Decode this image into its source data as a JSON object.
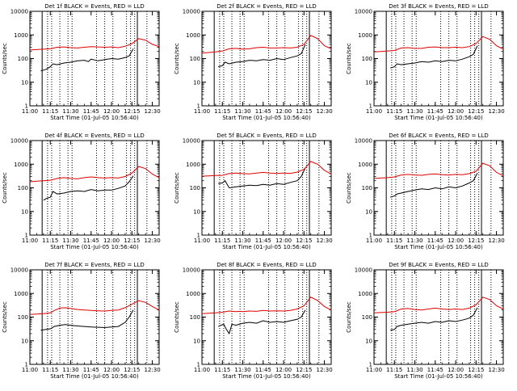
{
  "colors": {
    "events": "#000000",
    "lld": "#e00000",
    "axis": "#000000",
    "background": "#ffffff"
  },
  "chart_data": [
    {
      "type": "line",
      "title": "Det 1f BLACK = Events, RED = LLD",
      "xlabel": "Start Time (01-Jul-05 10:56:40)",
      "ylabel": "Counts/sec",
      "yscale": "log",
      "ylim": [
        1,
        10000
      ],
      "xlim": [
        "11:00",
        "12:35"
      ],
      "xticks": [
        "11:00",
        "11:15",
        "11:30",
        "11:45",
        "12:00",
        "12:15",
        "12:30"
      ],
      "yticks": [
        "1",
        "10",
        "100",
        "1000",
        "10000"
      ],
      "series": [
        {
          "name": "Events",
          "x": [
            "11:08",
            "11:12",
            "11:15",
            "11:17",
            "11:20",
            "11:25",
            "11:30",
            "11:35",
            "11:40",
            "11:43",
            "11:45",
            "11:50",
            "11:55",
            "12:00",
            "12:05",
            "12:10",
            "12:13",
            "12:16"
          ],
          "y": [
            30,
            35,
            45,
            60,
            55,
            65,
            70,
            80,
            85,
            75,
            95,
            80,
            90,
            100,
            95,
            110,
            130,
            260
          ]
        },
        {
          "name": "LLD",
          "x": [
            "11:00",
            "11:05",
            "11:10",
            "11:15",
            "11:20",
            "11:25",
            "11:30",
            "11:35",
            "11:40",
            "11:45",
            "11:50",
            "11:55",
            "12:00",
            "12:05",
            "12:10",
            "12:15",
            "12:20",
            "12:25",
            "12:30",
            "12:35"
          ],
          "y": [
            230,
            240,
            250,
            260,
            300,
            310,
            290,
            280,
            300,
            320,
            310,
            300,
            310,
            290,
            330,
            430,
            700,
            600,
            400,
            320
          ]
        }
      ]
    },
    {
      "type": "line",
      "title": "Det 2f BLACK = Events, RED = LLD",
      "xlabel": "Start Time (01-Jul-05 10:56:40)",
      "ylabel": "Counts/sec",
      "yscale": "log",
      "ylim": [
        1,
        10000
      ],
      "xlim": [
        "11:00",
        "12:35"
      ],
      "xticks": [
        "11:00",
        "11:15",
        "11:30",
        "11:45",
        "12:00",
        "12:15",
        "12:30"
      ],
      "yticks": [
        "1",
        "10",
        "100",
        "1000",
        "10000"
      ],
      "series": [
        {
          "name": "Events",
          "x": [
            "11:12",
            "11:15",
            "11:17",
            "11:20",
            "11:25",
            "11:30",
            "11:35",
            "11:40",
            "11:45",
            "11:50",
            "11:55",
            "12:00",
            "12:05",
            "12:10",
            "12:13",
            "12:16"
          ],
          "y": [
            45,
            50,
            70,
            60,
            70,
            75,
            85,
            80,
            90,
            85,
            100,
            90,
            110,
            130,
            160,
            400
          ]
        },
        {
          "name": "LLD",
          "x": [
            "11:00",
            "11:05",
            "11:10",
            "11:15",
            "11:20",
            "11:25",
            "11:30",
            "11:35",
            "11:40",
            "11:45",
            "11:50",
            "11:55",
            "12:00",
            "12:05",
            "12:10",
            "12:15",
            "12:20",
            "12:25",
            "12:30",
            "12:35"
          ],
          "y": [
            170,
            180,
            190,
            210,
            260,
            270,
            250,
            260,
            290,
            300,
            280,
            280,
            290,
            280,
            300,
            400,
            950,
            700,
            350,
            260
          ]
        }
      ]
    },
    {
      "type": "line",
      "title": "Det 3f BLACK = Events, RED = LLD",
      "xlabel": "Start Time (01-Jul-05 10:56:40)",
      "ylabel": "Counts/sec",
      "yscale": "log",
      "ylim": [
        1,
        10000
      ],
      "xlim": [
        "11:00",
        "12:35"
      ],
      "xticks": [
        "11:00",
        "11:15",
        "11:30",
        "11:45",
        "12:00",
        "12:15",
        "12:30"
      ],
      "yticks": [
        "1",
        "10",
        "100",
        "1000",
        "10000"
      ],
      "series": [
        {
          "name": "Events",
          "x": [
            "11:12",
            "11:15",
            "11:17",
            "11:20",
            "11:25",
            "11:30",
            "11:35",
            "11:40",
            "11:45",
            "11:50",
            "11:55",
            "12:00",
            "12:05",
            "12:10",
            "12:13",
            "12:16"
          ],
          "y": [
            40,
            45,
            60,
            55,
            60,
            65,
            75,
            70,
            80,
            75,
            85,
            80,
            95,
            120,
            150,
            350
          ]
        },
        {
          "name": "LLD",
          "x": [
            "11:00",
            "11:05",
            "11:10",
            "11:15",
            "11:20",
            "11:25",
            "11:30",
            "11:35",
            "11:40",
            "11:45",
            "11:50",
            "11:55",
            "12:00",
            "12:05",
            "12:10",
            "12:15",
            "12:20",
            "12:25",
            "12:30",
            "12:35"
          ],
          "y": [
            190,
            200,
            210,
            220,
            280,
            290,
            270,
            270,
            300,
            310,
            290,
            290,
            300,
            290,
            320,
            430,
            850,
            650,
            350,
            250
          ]
        }
      ]
    },
    {
      "type": "line",
      "title": "Det 4f BLACK = Events, RED = LLD",
      "xlabel": "Start Time (01-Jul-05 10:56:40)",
      "ylabel": "Counts/sec",
      "yscale": "log",
      "ylim": [
        1,
        10000
      ],
      "xlim": [
        "11:00",
        "12:35"
      ],
      "xticks": [
        "11:00",
        "11:15",
        "11:30",
        "11:45",
        "12:00",
        "12:15",
        "12:30"
      ],
      "yticks": [
        "1",
        "10",
        "100",
        "1000",
        "10000"
      ],
      "series": [
        {
          "name": "Events",
          "x": [
            "11:10",
            "11:12",
            "11:15",
            "11:17",
            "11:20",
            "11:25",
            "11:30",
            "11:35",
            "11:40",
            "11:45",
            "11:50",
            "11:55",
            "12:00",
            "12:05",
            "12:10",
            "12:13",
            "12:16"
          ],
          "y": [
            30,
            35,
            40,
            70,
            55,
            60,
            70,
            75,
            70,
            85,
            75,
            80,
            80,
            95,
            120,
            180,
            320
          ]
        },
        {
          "name": "LLD",
          "x": [
            "11:00",
            "11:05",
            "11:10",
            "11:15",
            "11:20",
            "11:25",
            "11:30",
            "11:35",
            "11:40",
            "11:45",
            "11:50",
            "11:55",
            "12:00",
            "12:05",
            "12:10",
            "12:15",
            "12:20",
            "12:25",
            "12:30",
            "12:35"
          ],
          "y": [
            180,
            190,
            200,
            210,
            250,
            270,
            250,
            240,
            270,
            290,
            270,
            260,
            270,
            260,
            300,
            420,
            800,
            650,
            380,
            270
          ]
        }
      ]
    },
    {
      "type": "line",
      "title": "Det 5f BLACK = Events, RED = LLD",
      "xlabel": "Start Time (01-Jul-05 10:56:40)",
      "ylabel": "Counts/sec",
      "yscale": "log",
      "ylim": [
        1,
        10000
      ],
      "xlim": [
        "11:00",
        "12:35"
      ],
      "xticks": [
        "11:00",
        "11:15",
        "11:30",
        "11:45",
        "12:00",
        "12:15",
        "12:30"
      ],
      "yticks": [
        "1",
        "10",
        "100",
        "1000",
        "10000"
      ],
      "series": [
        {
          "name": "Events",
          "x": [
            "11:12",
            "11:15",
            "11:17",
            "11:20",
            "11:25",
            "11:30",
            "11:35",
            "11:40",
            "11:45",
            "11:50",
            "11:55",
            "12:00",
            "12:05",
            "12:10",
            "12:13",
            "12:16"
          ],
          "y": [
            150,
            160,
            200,
            100,
            110,
            120,
            130,
            125,
            140,
            130,
            150,
            140,
            170,
            200,
            300,
            700
          ]
        },
        {
          "name": "LLD",
          "x": [
            "11:00",
            "11:05",
            "11:10",
            "11:15",
            "11:20",
            "11:25",
            "11:30",
            "11:35",
            "11:40",
            "11:45",
            "11:50",
            "11:55",
            "12:00",
            "12:05",
            "12:10",
            "12:15",
            "12:20",
            "12:25",
            "12:30",
            "12:35"
          ],
          "y": [
            310,
            320,
            330,
            340,
            400,
            420,
            400,
            390,
            420,
            450,
            420,
            410,
            420,
            410,
            460,
            600,
            1300,
            1000,
            550,
            380
          ]
        }
      ]
    },
    {
      "type": "line",
      "title": "Det 6f BLACK = Events, RED = LLD",
      "xlabel": "Start Time (01-Jul-05 10:56:40)",
      "ylabel": "Counts/sec",
      "yscale": "log",
      "ylim": [
        1,
        10000
      ],
      "xlim": [
        "11:00",
        "12:35"
      ],
      "xticks": [
        "11:00",
        "11:15",
        "11:30",
        "11:45",
        "12:00",
        "12:15",
        "12:30"
      ],
      "yticks": [
        "1",
        "10",
        "100",
        "1000",
        "10000"
      ],
      "series": [
        {
          "name": "Events",
          "x": [
            "11:12",
            "11:15",
            "11:17",
            "11:20",
            "11:25",
            "11:30",
            "11:35",
            "11:40",
            "11:45",
            "11:50",
            "11:55",
            "12:00",
            "12:05",
            "12:10",
            "12:13",
            "12:16"
          ],
          "y": [
            40,
            45,
            55,
            60,
            70,
            80,
            90,
            85,
            100,
            90,
            110,
            100,
            120,
            160,
            200,
            420
          ]
        },
        {
          "name": "LLD",
          "x": [
            "11:00",
            "11:05",
            "11:10",
            "11:15",
            "11:20",
            "11:25",
            "11:30",
            "11:35",
            "11:40",
            "11:45",
            "11:50",
            "11:55",
            "12:00",
            "12:05",
            "12:10",
            "12:15",
            "12:20",
            "12:25",
            "12:30",
            "12:35"
          ],
          "y": [
            250,
            260,
            270,
            290,
            350,
            370,
            350,
            340,
            370,
            390,
            360,
            350,
            370,
            360,
            400,
            500,
            1100,
            850,
            450,
            320
          ]
        }
      ]
    },
    {
      "type": "line",
      "title": "Det 7f BLACK = Events, RED = LLD",
      "xlabel": "Start Time (01-Jul-05 10:56:40)",
      "ylabel": "Counts/sec",
      "yscale": "log",
      "ylim": [
        1,
        10000
      ],
      "xlim": [
        "11:00",
        "12:35"
      ],
      "xticks": [
        "11:00",
        "11:15",
        "11:30",
        "11:45",
        "12:00",
        "12:15",
        "12:30"
      ],
      "yticks": [
        "1",
        "10",
        "100",
        "1000",
        "10000"
      ],
      "series": [
        {
          "name": "Events",
          "x": [
            "11:08",
            "11:12",
            "11:15",
            "11:18",
            "11:22",
            "11:26",
            "11:30",
            "11:35",
            "11:40",
            "11:45",
            "11:50",
            "11:55",
            "12:00",
            "12:05",
            "12:10",
            "12:13",
            "12:16"
          ],
          "y": [
            28,
            30,
            32,
            40,
            45,
            48,
            45,
            42,
            40,
            38,
            37,
            36,
            38,
            40,
            60,
            100,
            200
          ]
        },
        {
          "name": "LLD",
          "x": [
            "11:00",
            "11:05",
            "11:10",
            "11:15",
            "11:18",
            "11:22",
            "11:26",
            "11:30",
            "11:35",
            "11:40",
            "11:45",
            "11:50",
            "11:55",
            "12:00",
            "12:05",
            "12:10",
            "12:15",
            "12:20",
            "12:25",
            "12:30",
            "12:35"
          ],
          "y": [
            130,
            135,
            140,
            150,
            190,
            240,
            250,
            230,
            210,
            200,
            190,
            185,
            180,
            190,
            200,
            250,
            350,
            500,
            420,
            280,
            200
          ]
        }
      ]
    },
    {
      "type": "line",
      "title": "Det 8f BLACK = Events, RED = LLD",
      "xlabel": "Start Time (01-Jul-05 10:56:40)",
      "ylabel": "Counts/sec",
      "yscale": "log",
      "ylim": [
        1,
        10000
      ],
      "xlim": [
        "11:00",
        "12:35"
      ],
      "xticks": [
        "11:00",
        "11:15",
        "11:30",
        "11:45",
        "12:00",
        "12:15",
        "12:30"
      ],
      "yticks": [
        "1",
        "10",
        "100",
        "1000",
        "10000"
      ],
      "series": [
        {
          "name": "Events",
          "x": [
            "11:12",
            "11:14",
            "11:16",
            "11:18",
            "11:20",
            "11:22",
            "11:25",
            "11:30",
            "11:35",
            "11:40",
            "11:45",
            "11:50",
            "11:55",
            "12:00",
            "12:05",
            "12:10",
            "12:13",
            "12:16"
          ],
          "y": [
            40,
            45,
            50,
            30,
            20,
            50,
            45,
            55,
            60,
            55,
            70,
            60,
            65,
            60,
            70,
            80,
            100,
            200
          ]
        },
        {
          "name": "LLD",
          "x": [
            "11:00",
            "11:05",
            "11:10",
            "11:15",
            "11:20",
            "11:25",
            "11:28",
            "11:30",
            "11:35",
            "11:40",
            "11:45",
            "11:50",
            "11:55",
            "12:00",
            "12:05",
            "12:10",
            "12:15",
            "12:20",
            "12:25",
            "12:30",
            "12:35"
          ],
          "y": [
            140,
            145,
            150,
            160,
            180,
            170,
            175,
            170,
            180,
            175,
            190,
            180,
            185,
            180,
            190,
            220,
            300,
            700,
            500,
            280,
            200
          ]
        }
      ]
    },
    {
      "type": "line",
      "title": "Det 9f BLACK = Events, RED = LLD",
      "xlabel": "Start Time (01-Jul-05 10:56:40)",
      "ylabel": "Counts/sec",
      "yscale": "log",
      "ylim": [
        1,
        10000
      ],
      "xlim": [
        "11:00",
        "12:35"
      ],
      "xticks": [
        "11:00",
        "11:15",
        "11:30",
        "11:45",
        "12:00",
        "12:15",
        "12:30"
      ],
      "yticks": [
        "1",
        "10",
        "100",
        "1000",
        "10000"
      ],
      "series": [
        {
          "name": "Events",
          "x": [
            "11:12",
            "11:15",
            "11:17",
            "11:20",
            "11:25",
            "11:30",
            "11:35",
            "11:40",
            "11:45",
            "11:50",
            "11:55",
            "12:00",
            "12:05",
            "12:10",
            "12:13",
            "12:16"
          ],
          "y": [
            28,
            30,
            40,
            45,
            50,
            55,
            60,
            55,
            65,
            60,
            70,
            65,
            75,
            90,
            120,
            250
          ]
        },
        {
          "name": "LLD",
          "x": [
            "11:00",
            "11:05",
            "11:10",
            "11:15",
            "11:20",
            "11:25",
            "11:30",
            "11:35",
            "11:40",
            "11:45",
            "11:50",
            "11:55",
            "12:00",
            "12:05",
            "12:10",
            "12:15",
            "12:20",
            "12:25",
            "12:30",
            "12:35"
          ],
          "y": [
            150,
            155,
            160,
            170,
            220,
            230,
            210,
            200,
            220,
            240,
            220,
            210,
            220,
            210,
            240,
            330,
            700,
            550,
            300,
            220
          ]
        }
      ]
    }
  ]
}
